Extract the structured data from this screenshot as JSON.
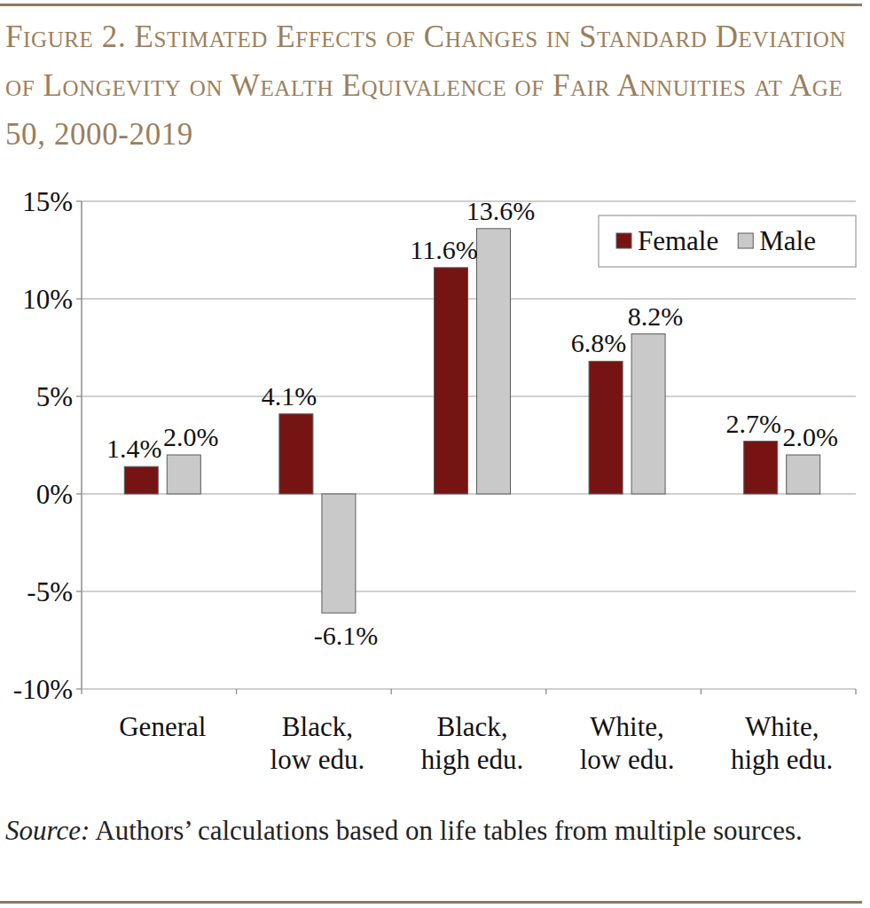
{
  "chart_data": {
    "type": "bar",
    "title": "Figure 2. Estimated Effects of Changes in Standard Deviation of Longevity on Wealth Equivalence of Fair Annuities at Age 50, 2000-2019",
    "categories": [
      "General",
      "Black, low edu.",
      "Black, high edu.",
      "White, low edu.",
      "White, high edu."
    ],
    "series": [
      {
        "name": "Female",
        "color": "#761413",
        "values": [
          1.4,
          4.1,
          11.6,
          6.8,
          2.7
        ],
        "value_labels": [
          "1.4%",
          "4.1%",
          "11.6%",
          "6.8%",
          "2.7%"
        ]
      },
      {
        "name": "Male",
        "color": "#c9c9c9",
        "values": [
          2.0,
          -6.1,
          13.6,
          8.2,
          2.0
        ],
        "value_labels": [
          "2.0%",
          "-6.1%",
          "13.6%",
          "8.2%",
          "2.0%"
        ]
      }
    ],
    "ylim": [
      -10,
      15
    ],
    "yticks": [
      {
        "value": -10,
        "label": "-10%"
      },
      {
        "value": -5,
        "label": "-5%"
      },
      {
        "value": 0,
        "label": "0%"
      },
      {
        "value": 5,
        "label": "5%"
      },
      {
        "value": 10,
        "label": "10%"
      },
      {
        "value": 15,
        "label": "15%"
      }
    ],
    "grid": true,
    "legend": "upper right",
    "data_labels": true,
    "source": "Source: Authors’ calculations based on life tables from multiple sources."
  }
}
